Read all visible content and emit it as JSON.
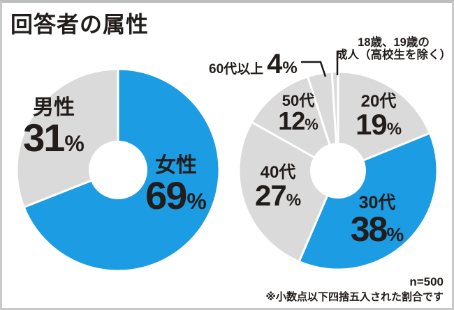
{
  "title": "回答者の属性",
  "palette": {
    "blue": "#1b9ce3",
    "gray": "#dadada",
    "separator": "#ffffff",
    "text": "#221d1a"
  },
  "chart_data": [
    {
      "type": "pie",
      "name": "gender",
      "donut": true,
      "start_angle_deg": 0,
      "direction": "clockwise",
      "unit": "%",
      "slices": [
        {
          "key": "female",
          "label": "女性",
          "value": 69,
          "color": "blue"
        },
        {
          "key": "male",
          "label": "男性",
          "value": 31,
          "color": "gray"
        }
      ]
    },
    {
      "type": "pie",
      "name": "age",
      "donut": true,
      "start_angle_deg": 0,
      "direction": "clockwise",
      "unit": "%",
      "slices": [
        {
          "key": "20s",
          "label": "20代",
          "value": 19,
          "color": "gray"
        },
        {
          "key": "30s",
          "label": "30代",
          "value": 38,
          "color": "blue"
        },
        {
          "key": "40s",
          "label": "40代",
          "value": 27,
          "color": "gray"
        },
        {
          "key": "50s",
          "label": "50代",
          "value": 12,
          "color": "gray"
        },
        {
          "key": "60s-plus",
          "label": "60代以上",
          "value": 4,
          "color": "gray"
        },
        {
          "key": "18-19",
          "label": "18歳、19歳の成人（高校生を除く）",
          "label_lines": [
            "18歳、19歳の",
            "成人（高校生を除く）"
          ],
          "value": 1,
          "color": "gray"
        }
      ]
    }
  ],
  "footnote": {
    "n_label": "n=500",
    "note": "※小数点以下四捨五入された割合です"
  }
}
